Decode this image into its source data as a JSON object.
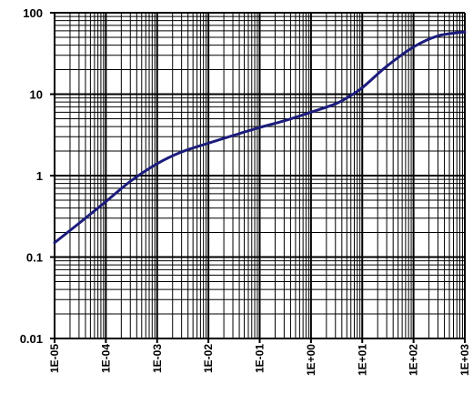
{
  "chart_data": {
    "type": "line",
    "title": "",
    "xlabel": "",
    "ylabel": "",
    "x_scale": "log",
    "y_scale": "log",
    "xlim": [
      1e-05,
      1000
    ],
    "ylim": [
      0.01,
      100
    ],
    "grid": true,
    "x_tick_labels": [
      "1E-05",
      "1E-04",
      "1E-03",
      "1E-02",
      "1E-01",
      "1E+00",
      "1E+01",
      "1E+02",
      "1E+03"
    ],
    "y_tick_labels": [
      "0.01",
      "0.1",
      "1",
      "10",
      "100"
    ],
    "colors": {
      "line": "#1c1c7c",
      "grid": "#000000",
      "background": "#ffffff"
    },
    "series": [
      {
        "x": [
          1e-05,
          3e-05,
          0.0001,
          0.0003,
          0.001,
          0.003,
          0.01,
          0.03,
          0.1,
          0.3,
          1,
          3,
          5,
          10,
          30,
          100,
          300,
          1000
        ],
        "y": [
          0.15,
          0.26,
          0.48,
          0.85,
          1.4,
          1.95,
          2.5,
          3.1,
          3.9,
          4.7,
          6.0,
          7.6,
          9.0,
          12.0,
          22.0,
          38.0,
          52.0,
          58.0
        ]
      }
    ]
  }
}
